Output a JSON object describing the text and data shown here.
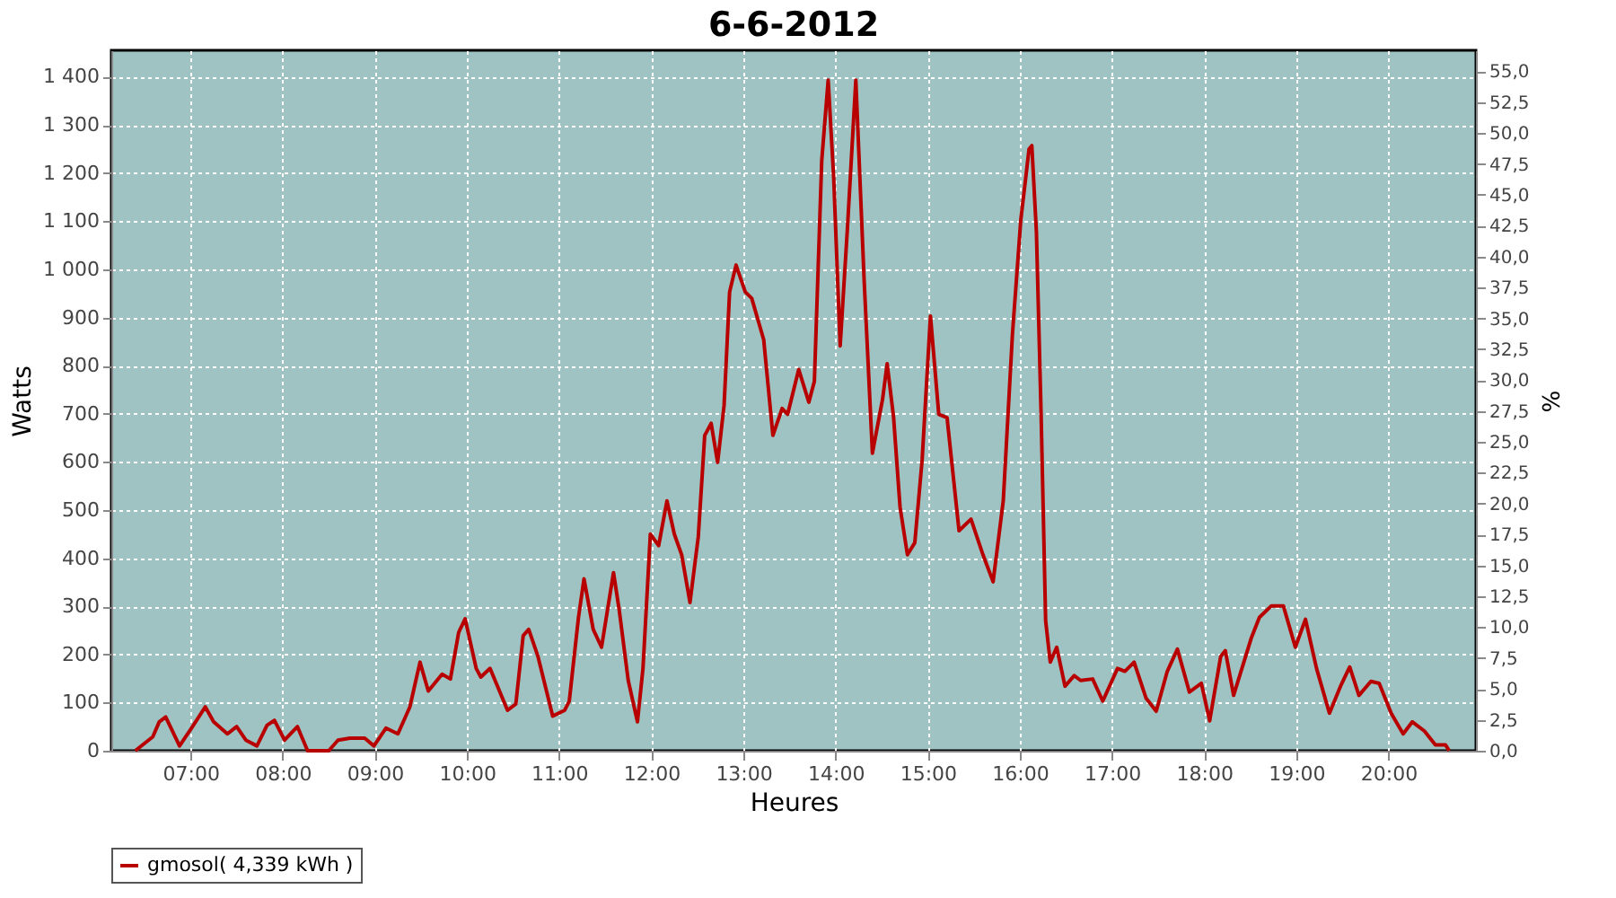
{
  "chart_data": {
    "type": "line",
    "title": "6-6-2012",
    "xlabel": "Heures",
    "ylabel": "Watts",
    "y2label": "%",
    "xlim": [
      6.14,
      20.95
    ],
    "xticks": [
      {
        "value": 7,
        "label": "07:00"
      },
      {
        "value": 8,
        "label": "08:00"
      },
      {
        "value": 9,
        "label": "09:00"
      },
      {
        "value": 10,
        "label": "10:00"
      },
      {
        "value": 11,
        "label": "11:00"
      },
      {
        "value": 12,
        "label": "12:00"
      },
      {
        "value": 13,
        "label": "13:00"
      },
      {
        "value": 14,
        "label": "14:00"
      },
      {
        "value": 15,
        "label": "15:00"
      },
      {
        "value": 16,
        "label": "16:00"
      },
      {
        "value": 17,
        "label": "17:00"
      },
      {
        "value": 18,
        "label": "18:00"
      },
      {
        "value": 19,
        "label": "19:00"
      },
      {
        "value": 20,
        "label": "20:00"
      }
    ],
    "ylim": [
      0,
      1455
    ],
    "yticks": [
      0,
      100,
      200,
      300,
      400,
      500,
      600,
      700,
      800,
      900,
      {
        "value": 1000,
        "label": "1 000"
      },
      {
        "value": 1100,
        "label": "1 100"
      },
      {
        "value": 1200,
        "label": "1 200"
      },
      {
        "value": 1300,
        "label": "1 300"
      },
      {
        "value": 1400,
        "label": "1 400"
      }
    ],
    "y2lim": [
      0,
      56.7
    ],
    "y2ticks": [
      {
        "value": 0,
        "label": "0,0"
      },
      {
        "value": 2.5,
        "label": "2,5"
      },
      {
        "value": 5,
        "label": "5,0"
      },
      {
        "value": 7.5,
        "label": "7,5"
      },
      {
        "value": 10,
        "label": "10,0"
      },
      {
        "value": 12.5,
        "label": "12,5"
      },
      {
        "value": 15,
        "label": "15,0"
      },
      {
        "value": 17.5,
        "label": "17,5"
      },
      {
        "value": 20,
        "label": "20,0"
      },
      {
        "value": 22.5,
        "label": "22,5"
      },
      {
        "value": 25,
        "label": "25,0"
      },
      {
        "value": 27.5,
        "label": "27,5"
      },
      {
        "value": 30,
        "label": "30,0"
      },
      {
        "value": 32.5,
        "label": "32,5"
      },
      {
        "value": 35,
        "label": "35,0"
      },
      {
        "value": 37.5,
        "label": "37,5"
      },
      {
        "value": 40,
        "label": "40,0"
      },
      {
        "value": 42.5,
        "label": "42,5"
      },
      {
        "value": 45,
        "label": "45,0"
      },
      {
        "value": 47.5,
        "label": "47,5"
      },
      {
        "value": 50,
        "label": "50,0"
      },
      {
        "value": 52.5,
        "label": "52,5"
      },
      {
        "value": 55,
        "label": "55,0"
      }
    ],
    "grid": true,
    "legend": "bottom",
    "marker": "none",
    "line_style": "solid",
    "series": [
      {
        "name": "gmosol( 4,339 kWh )",
        "color": "#b80000",
        "x": [
          6.4,
          6.59,
          6.66,
          6.73,
          6.88,
          7.01,
          7.16,
          7.25,
          7.4,
          7.5,
          7.6,
          7.72,
          7.83,
          7.91,
          8.02,
          8.16,
          8.27,
          8.5,
          8.6,
          8.73,
          8.89,
          8.99,
          9.12,
          9.25,
          9.38,
          9.49,
          9.58,
          9.73,
          9.82,
          9.91,
          9.98,
          10.1,
          10.15,
          10.25,
          10.44,
          10.53,
          10.61,
          10.67,
          10.77,
          10.93,
          11.06,
          11.11,
          11.21,
          11.27,
          11.37,
          11.46,
          11.59,
          11.65,
          11.75,
          11.85,
          11.91,
          11.99,
          12.08,
          12.17,
          12.25,
          12.33,
          12.42,
          12.51,
          12.58,
          12.65,
          12.72,
          12.79,
          12.85,
          12.92,
          13.02,
          13.09,
          13.22,
          13.32,
          13.42,
          13.48,
          13.6,
          13.71,
          13.77,
          13.85,
          13.92,
          13.98,
          14.05,
          14.13,
          14.22,
          14.31,
          14.4,
          14.51,
          14.56,
          14.63,
          14.7,
          14.78,
          14.86,
          14.94,
          15.03,
          15.12,
          15.21,
          15.34,
          15.47,
          15.6,
          15.71,
          15.82,
          15.92,
          16.01,
          16.1,
          16.13,
          16.18,
          16.23,
          16.28,
          16.33,
          16.4,
          16.49,
          16.59,
          16.66,
          16.79,
          16.9,
          17.06,
          17.14,
          17.24,
          17.37,
          17.48,
          17.6,
          17.71,
          17.84,
          17.97,
          18.06,
          18.18,
          18.23,
          18.32,
          18.51,
          18.6,
          18.73,
          18.86,
          18.99,
          19.1,
          19.22,
          19.36,
          19.48,
          19.58,
          19.68,
          19.81,
          19.9,
          20.03,
          20.16,
          20.26,
          20.39,
          20.51,
          20.62,
          20.66
        ],
        "values": [
          0,
          29,
          60,
          70,
          10,
          47,
          91,
          60,
          35,
          50,
          22,
          10,
          53,
          63,
          22,
          50,
          0,
          0,
          22,
          26,
          26,
          10,
          47,
          35,
          91,
          184,
          124,
          159,
          149,
          246,
          274,
          171,
          153,
          171,
          84,
          97,
          239,
          252,
          196,
          72,
          84,
          103,
          277,
          357,
          252,
          215,
          370,
          295,
          146,
          60,
          171,
          450,
          426,
          519,
          450,
          407,
          308,
          444,
          655,
          680,
          599,
          717,
          953,
          1009,
          953,
          940,
          854,
          655,
          711,
          699,
          792,
          724,
          767,
          1226,
          1393,
          1189,
          841,
          1089,
          1393,
          978,
          618,
          730,
          804,
          692,
          506,
          407,
          432,
          605,
          903,
          699,
          692,
          457,
          481,
          407,
          351,
          519,
          866,
          1102,
          1250,
          1257,
          1077,
          705,
          270,
          184,
          215,
          134,
          156,
          146,
          149,
          103,
          171,
          165,
          184,
          109,
          82,
          165,
          211,
          122,
          140,
          62,
          196,
          208,
          115,
          233,
          277,
          301,
          301,
          215,
          273,
          171,
          78,
          134,
          174,
          115,
          144,
          140,
          78,
          35,
          60,
          41,
          12,
          12,
          0
        ]
      }
    ]
  }
}
